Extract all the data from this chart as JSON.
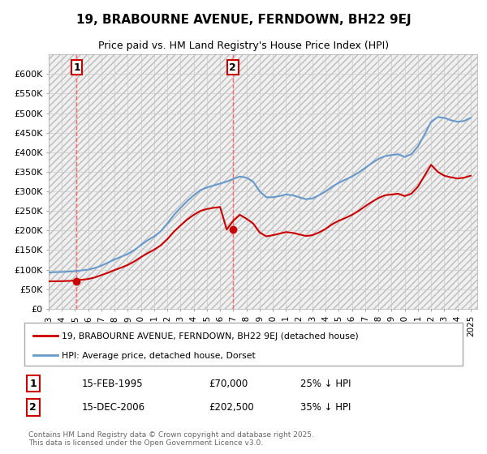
{
  "title": "19, BRABOURNE AVENUE, FERNDOWN, BH22 9EJ",
  "subtitle": "Price paid vs. HM Land Registry's House Price Index (HPI)",
  "legend_label_red": "19, BRABOURNE AVENUE, FERNDOWN, BH22 9EJ (detached house)",
  "legend_label_blue": "HPI: Average price, detached house, Dorset",
  "annotation1_label": "1",
  "annotation1_date": "15-FEB-1995",
  "annotation1_price": "£70,000",
  "annotation1_hpi": "25% ↓ HPI",
  "annotation2_label": "2",
  "annotation2_date": "15-DEC-2006",
  "annotation2_price": "£202,500",
  "annotation2_hpi": "35% ↓ HPI",
  "footer": "Contains HM Land Registry data © Crown copyright and database right 2025.\nThis data is licensed under the Open Government Licence v3.0.",
  "ylim": [
    0,
    650000
  ],
  "yticks": [
    0,
    50000,
    100000,
    150000,
    200000,
    250000,
    300000,
    350000,
    400000,
    450000,
    500000,
    550000,
    600000
  ],
  "ytick_labels": [
    "£0",
    "£50K",
    "£100K",
    "£150K",
    "£200K",
    "£250K",
    "£300K",
    "£350K",
    "£400K",
    "£450K",
    "£500K",
    "£550K",
    "£600K"
  ],
  "red_color": "#cc0000",
  "blue_color": "#6699cc",
  "dashed_color": "#ff6666",
  "grid_color": "#cccccc",
  "bg_color": "#f0f0f0",
  "annotation_box_color": "#cc0000",
  "purchase1_x": 1995.12,
  "purchase1_y": 70000,
  "purchase2_x": 2006.96,
  "purchase2_y": 202500,
  "hpi_line": {
    "x": [
      1993,
      1993.5,
      1994,
      1994.5,
      1995,
      1995.5,
      1996,
      1996.5,
      1997,
      1997.5,
      1998,
      1998.5,
      1999,
      1999.5,
      2000,
      2000.5,
      2001,
      2001.5,
      2002,
      2002.5,
      2003,
      2003.5,
      2004,
      2004.5,
      2005,
      2005.5,
      2006,
      2006.5,
      2007,
      2007.5,
      2008,
      2008.5,
      2009,
      2009.5,
      2010,
      2010.5,
      2011,
      2011.5,
      2012,
      2012.5,
      2013,
      2013.5,
      2014,
      2014.5,
      2015,
      2015.5,
      2016,
      2016.5,
      2017,
      2017.5,
      2018,
      2018.5,
      2019,
      2019.5,
      2020,
      2020.5,
      2021,
      2021.5,
      2022,
      2022.5,
      2023,
      2023.5,
      2024,
      2024.5,
      2025
    ],
    "y": [
      93000,
      93500,
      94000,
      95000,
      96000,
      98000,
      100000,
      104000,
      110000,
      118000,
      126000,
      133000,
      140000,
      150000,
      163000,
      175000,
      185000,
      198000,
      218000,
      240000,
      258000,
      275000,
      290000,
      303000,
      310000,
      315000,
      320000,
      325000,
      332000,
      338000,
      335000,
      325000,
      300000,
      285000,
      285000,
      288000,
      292000,
      290000,
      285000,
      280000,
      282000,
      290000,
      300000,
      312000,
      322000,
      330000,
      338000,
      348000,
      360000,
      372000,
      383000,
      390000,
      393000,
      395000,
      388000,
      395000,
      415000,
      445000,
      478000,
      490000,
      488000,
      482000,
      478000,
      480000,
      488000
    ]
  },
  "red_line": {
    "x": [
      1993,
      1993.5,
      1994,
      1994.5,
      1995,
      1995.5,
      1996,
      1996.5,
      1997,
      1997.5,
      1998,
      1998.5,
      1999,
      1999.5,
      2000,
      2000.5,
      2001,
      2001.5,
      2002,
      2002.5,
      2003,
      2003.5,
      2004,
      2004.5,
      2005,
      2005.5,
      2006,
      2006.5,
      2007,
      2007.5,
      2008,
      2008.5,
      2009,
      2009.5,
      2010,
      2010.5,
      2011,
      2011.5,
      2012,
      2012.5,
      2013,
      2013.5,
      2014,
      2014.5,
      2015,
      2015.5,
      2016,
      2016.5,
      2017,
      2017.5,
      2018,
      2018.5,
      2019,
      2019.5,
      2020,
      2020.5,
      2021,
      2021.5,
      2022,
      2022.5,
      2023,
      2023.5,
      2024,
      2024.5,
      2025
    ],
    "y": [
      70000,
      70200,
      70500,
      71000,
      72000,
      74000,
      76000,
      80000,
      86000,
      92000,
      99000,
      105000,
      112000,
      121000,
      132000,
      142000,
      151000,
      162000,
      178000,
      197000,
      213000,
      228000,
      240000,
      250000,
      255000,
      258000,
      260000,
      202500,
      225000,
      240000,
      230000,
      218000,
      195000,
      185000,
      188000,
      192000,
      196000,
      194000,
      190000,
      186000,
      188000,
      195000,
      204000,
      216000,
      225000,
      232000,
      240000,
      250000,
      262000,
      273000,
      283000,
      290000,
      292000,
      294000,
      288000,
      294000,
      312000,
      340000,
      368000,
      350000,
      340000,
      336000,
      333000,
      335000,
      340000
    ]
  },
  "xmin": 1993,
  "xmax": 2025.5,
  "xtick_years": [
    1993,
    1994,
    1995,
    1996,
    1997,
    1998,
    1999,
    2000,
    2001,
    2002,
    2003,
    2004,
    2005,
    2006,
    2007,
    2008,
    2009,
    2010,
    2011,
    2012,
    2013,
    2014,
    2015,
    2016,
    2017,
    2018,
    2019,
    2020,
    2021,
    2022,
    2023,
    2024,
    2025
  ]
}
